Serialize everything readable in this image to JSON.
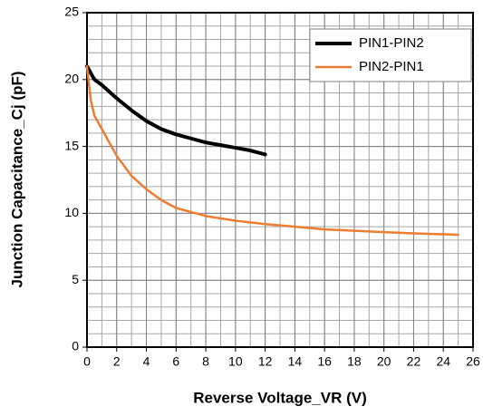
{
  "chart_data": {
    "type": "line",
    "xlabel": "Reverse Voltage_VR (V)",
    "ylabel": "Junction Capacitance_Cj (pF)",
    "xlim": [
      0,
      26
    ],
    "xticks": [
      0,
      2,
      4,
      6,
      8,
      10,
      12,
      14,
      16,
      18,
      20,
      22,
      24,
      26
    ],
    "ylim": [
      0,
      25
    ],
    "yticks": [
      0,
      5,
      10,
      15,
      20,
      25
    ],
    "grid": true,
    "minor_grid": {
      "x": 1,
      "y": 1
    },
    "legend": "upper right",
    "series": [
      {
        "name": "PIN1-PIN2",
        "color": "#000000",
        "x": [
          0,
          0.5,
          1,
          2,
          3,
          4,
          5,
          6,
          7,
          8,
          9,
          10,
          11,
          12
        ],
        "values": [
          21,
          20,
          19.6,
          18.6,
          17.7,
          16.9,
          16.3,
          15.9,
          15.6,
          15.3,
          15.1,
          14.9,
          14.7,
          14.4
        ]
      },
      {
        "name": "PIN2-PIN1",
        "color": "#ed7d31",
        "x": [
          0,
          0.25,
          0.5,
          1,
          2,
          3,
          4,
          5,
          6,
          7,
          8,
          10,
          12,
          14,
          16,
          18,
          20,
          22,
          25
        ],
        "values": [
          21,
          18.5,
          17.3,
          16.3,
          14.3,
          12.8,
          11.8,
          11,
          10.4,
          10.1,
          9.8,
          9.45,
          9.2,
          9.0,
          8.8,
          8.7,
          8.6,
          8.5,
          8.4
        ]
      }
    ]
  }
}
